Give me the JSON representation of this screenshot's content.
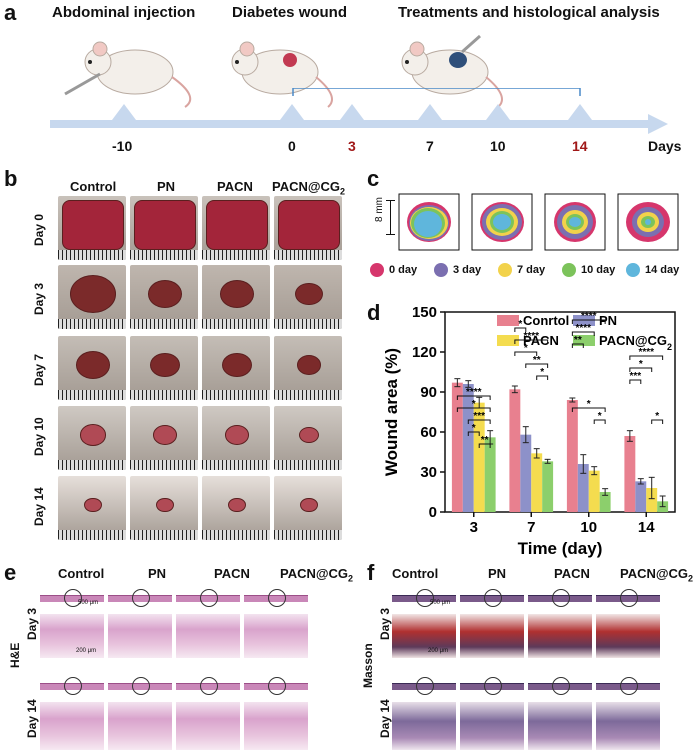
{
  "panels": {
    "a": "a",
    "b": "b",
    "c": "c",
    "d": "d",
    "e": "e",
    "f": "f"
  },
  "timeline": {
    "steps": [
      "Abdominal injection",
      "Diabetes wound",
      "Treatments and histological analysis"
    ],
    "ticks": [
      {
        "label": "-10",
        "color": "#111111"
      },
      {
        "label": "0",
        "color": "#111111"
      },
      {
        "label": "3",
        "color": "#a01818"
      },
      {
        "label": "7",
        "color": "#111111"
      },
      {
        "label": "10",
        "color": "#111111"
      },
      {
        "label": "14",
        "color": "#a01818"
      }
    ],
    "axis_label": "Days"
  },
  "groups": [
    "Control",
    "PN",
    "PACN",
    "PACN@CG"
  ],
  "groups_sub": "2",
  "days_b": [
    "Day 0",
    "Day 3",
    "Day 7",
    "Day 10",
    "Day 14"
  ],
  "trace": {
    "scale": "8 mm",
    "legend": [
      {
        "label": "0 day",
        "color": "#d6366c"
      },
      {
        "label": "3 day",
        "color": "#7b6fb0"
      },
      {
        "label": "7 day",
        "color": "#f2d24b"
      },
      {
        "label": "10 day",
        "color": "#7cc35b"
      },
      {
        "label": "14 day",
        "color": "#5fb6dc"
      }
    ]
  },
  "chart_data": {
    "type": "bar",
    "categories": [
      "3",
      "7",
      "10",
      "14"
    ],
    "xlabel": "Time (day)",
    "ylabel": "Wound area (%)",
    "ylim": [
      0,
      150
    ],
    "yticks": [
      0,
      30,
      60,
      90,
      120,
      150
    ],
    "series": [
      {
        "name": "Conrtol",
        "color": "#e8808f",
        "values": [
          97,
          92,
          84,
          57
        ],
        "errors": [
          3,
          2.5,
          1.5,
          4
        ]
      },
      {
        "name": "PN",
        "color": "#8d91c9",
        "values": [
          96,
          58,
          36,
          23
        ],
        "errors": [
          2.5,
          6,
          7,
          2
        ]
      },
      {
        "name": "PACN",
        "color": "#f4dc4f",
        "values": [
          82,
          44,
          31,
          18
        ],
        "errors": [
          4,
          3.5,
          3,
          8
        ]
      },
      {
        "name": "PACN@CG",
        "sub": "2",
        "color": "#8ccf6c",
        "values": [
          56,
          38,
          15,
          8
        ],
        "errors": [
          5,
          1.5,
          2.5,
          4
        ]
      }
    ],
    "significance": [
      "****",
      "*",
      "***",
      "*",
      "**",
      "*",
      "****",
      "*",
      "**",
      "*",
      "****",
      "****",
      "**",
      "*",
      "*",
      "****",
      "*",
      "***",
      "*"
    ]
  },
  "histo": {
    "e_days": [
      "Day 3",
      "Day 14"
    ],
    "e_stain": "H&E",
    "f_days": [
      "Day 3",
      "Day 14"
    ],
    "f_stain": "Masson",
    "scale_large": "500 μm",
    "scale_small": "200 μm"
  }
}
